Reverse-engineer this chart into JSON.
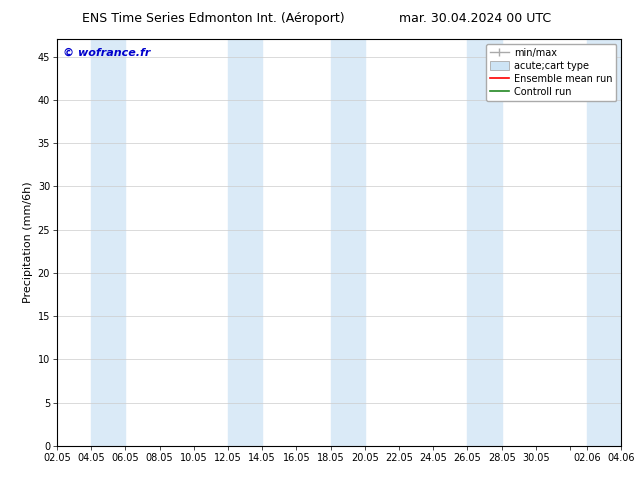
{
  "title_left": "ENS Time Series Edmonton Int. (Aéroport)",
  "title_right": "mar. 30.04.2024 00 UTC",
  "ylabel": "Precipitation (mm/6h)",
  "watermark": "© wofrance.fr",
  "watermark_color": "#0000cc",
  "ylim": [
    0,
    47
  ],
  "yticks": [
    0,
    5,
    10,
    15,
    20,
    25,
    30,
    35,
    40,
    45
  ],
  "xtick_labels": [
    "02.05",
    "04.05",
    "06.05",
    "08.05",
    "10.05",
    "12.05",
    "14.05",
    "16.05",
    "18.05",
    "20.05",
    "22.05",
    "24.05",
    "26.05",
    "28.05",
    "30.05",
    "",
    "02.06",
    "04.06"
  ],
  "background_color": "#ffffff",
  "plot_bg_color": "#ffffff",
  "band_color": "#daeaf7",
  "grid_color": "#cccccc",
  "title_fontsize": 9,
  "tick_fontsize": 7,
  "ylabel_fontsize": 8,
  "watermark_fontsize": 8,
  "legend_fontsize": 7,
  "bands": [
    [
      2,
      4
    ],
    [
      10,
      12
    ],
    [
      16,
      18
    ],
    [
      24,
      26
    ],
    [
      31,
      33
    ]
  ],
  "x_start": 0,
  "x_end": 33,
  "xtick_positions": [
    0,
    2,
    4,
    6,
    8,
    10,
    12,
    14,
    16,
    18,
    20,
    22,
    24,
    26,
    28,
    30,
    31,
    33
  ]
}
